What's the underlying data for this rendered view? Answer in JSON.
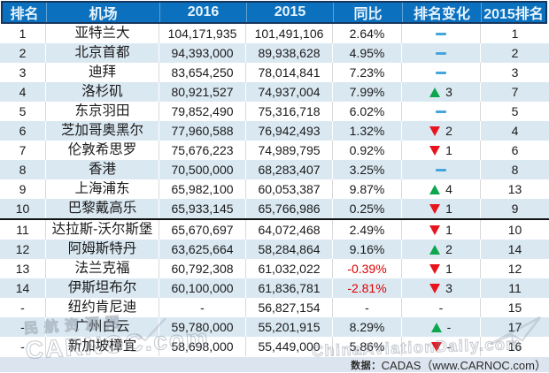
{
  "chart_data": {
    "type": "table",
    "title": "",
    "columns": [
      "排名",
      "机场",
      "2016",
      "2015",
      "同比",
      "排名变化",
      "2015排名"
    ],
    "rows": [
      [
        "1",
        "亚特兰大",
        "104,171,935",
        "101,491,106",
        "2.64%",
        "—",
        "1"
      ],
      [
        "2",
        "北京首都",
        "94,393,000",
        "89,938,628",
        "4.95%",
        "—",
        "2"
      ],
      [
        "3",
        "迪拜",
        "83,654,250",
        "78,014,841",
        "7.23%",
        "—",
        "3"
      ],
      [
        "4",
        "洛杉矶",
        "80,921,527",
        "74,937,004",
        "7.99%",
        "▲ 3",
        "7"
      ],
      [
        "5",
        "东京羽田",
        "79,852,490",
        "75,316,718",
        "6.02%",
        "—",
        "5"
      ],
      [
        "6",
        "芝加哥奥黑尔",
        "77,960,588",
        "76,942,493",
        "1.32%",
        "▼ 2",
        "4"
      ],
      [
        "7",
        "伦敦希思罗",
        "75,676,223",
        "74,989,795",
        "0.92%",
        "▼ 1",
        "6"
      ],
      [
        "8",
        "香港",
        "70,500,000",
        "68,283,407",
        "3.25%",
        "—",
        "8"
      ],
      [
        "9",
        "上海浦东",
        "65,982,100",
        "60,053,387",
        "9.87%",
        "▲ 4",
        "13"
      ],
      [
        "10",
        "巴黎戴高乐",
        "65,933,145",
        "65,766,986",
        "0.25%",
        "▼ 1",
        "9"
      ],
      [
        "11",
        "达拉斯-沃尔斯堡",
        "65,670,697",
        "64,072,468",
        "2.49%",
        "▼ 1",
        "10"
      ],
      [
        "12",
        "阿姆斯特丹",
        "63,625,664",
        "58,284,864",
        "9.16%",
        "▲ 2",
        "14"
      ],
      [
        "13",
        "法兰克福",
        "60,792,308",
        "61,032,022",
        "-0.39%",
        "▼ 1",
        "12"
      ],
      [
        "14",
        "伊斯坦布尔",
        "60,100,000",
        "61,836,781",
        "-2.81%",
        "▼ 3",
        "11"
      ],
      [
        "-",
        "纽约肯尼迪",
        "-",
        "56,827,154",
        "-",
        "-",
        "15"
      ],
      [
        "-",
        "广州白云",
        "59,780,000",
        "55,201,915",
        "8.29%",
        "▲ -",
        "17"
      ],
      [
        "-",
        "新加坡樟宜",
        "58,698,000",
        "55,449,000",
        "5.86%",
        "▼ -",
        "16"
      ]
    ],
    "notes": "排名1-10与11-17之间有粗分隔线；负同比为红色；来源：数据：CADAS（www.CARNOC.com）"
  },
  "table": {
    "columns": [
      "排名",
      "机场",
      "2016",
      "2015",
      "同比",
      "排名变化",
      "2015排名"
    ],
    "rows": [
      {
        "rank": "1",
        "airport": "亚特兰大",
        "y2016": "104,171,935",
        "y2015": "101,491,106",
        "yoy": "2.64%",
        "yoy_negative": false,
        "change_dir": "flat",
        "change_value": "",
        "rank2015": "1"
      },
      {
        "rank": "2",
        "airport": "北京首都",
        "y2016": "94,393,000",
        "y2015": "89,938,628",
        "yoy": "4.95%",
        "yoy_negative": false,
        "change_dir": "flat",
        "change_value": "",
        "rank2015": "2"
      },
      {
        "rank": "3",
        "airport": "迪拜",
        "y2016": "83,654,250",
        "y2015": "78,014,841",
        "yoy": "7.23%",
        "yoy_negative": false,
        "change_dir": "flat",
        "change_value": "",
        "rank2015": "3"
      },
      {
        "rank": "4",
        "airport": "洛杉矶",
        "y2016": "80,921,527",
        "y2015": "74,937,004",
        "yoy": "7.99%",
        "yoy_negative": false,
        "change_dir": "up",
        "change_value": "3",
        "rank2015": "7"
      },
      {
        "rank": "5",
        "airport": "东京羽田",
        "y2016": "79,852,490",
        "y2015": "75,316,718",
        "yoy": "6.02%",
        "yoy_negative": false,
        "change_dir": "flat",
        "change_value": "",
        "rank2015": "5"
      },
      {
        "rank": "6",
        "airport": "芝加哥奥黑尔",
        "y2016": "77,960,588",
        "y2015": "76,942,493",
        "yoy": "1.32%",
        "yoy_negative": false,
        "change_dir": "down",
        "change_value": "2",
        "rank2015": "4"
      },
      {
        "rank": "7",
        "airport": "伦敦希思罗",
        "y2016": "75,676,223",
        "y2015": "74,989,795",
        "yoy": "0.92%",
        "yoy_negative": false,
        "change_dir": "down",
        "change_value": "1",
        "rank2015": "6"
      },
      {
        "rank": "8",
        "airport": "香港",
        "y2016": "70,500,000",
        "y2015": "68,283,407",
        "yoy": "3.25%",
        "yoy_negative": false,
        "change_dir": "flat",
        "change_value": "",
        "rank2015": "8"
      },
      {
        "rank": "9",
        "airport": "上海浦东",
        "y2016": "65,982,100",
        "y2015": "60,053,387",
        "yoy": "9.87%",
        "yoy_negative": false,
        "change_dir": "up",
        "change_value": "4",
        "rank2015": "13"
      },
      {
        "rank": "10",
        "airport": "巴黎戴高乐",
        "y2016": "65,933,145",
        "y2015": "65,766,986",
        "yoy": "0.25%",
        "yoy_negative": false,
        "change_dir": "down",
        "change_value": "1",
        "rank2015": "9"
      },
      {
        "rank": "11",
        "airport": "达拉斯-沃尔斯堡",
        "y2016": "65,670,697",
        "y2015": "64,072,468",
        "yoy": "2.49%",
        "yoy_negative": false,
        "change_dir": "down",
        "change_value": "1",
        "rank2015": "10"
      },
      {
        "rank": "12",
        "airport": "阿姆斯特丹",
        "y2016": "63,625,664",
        "y2015": "58,284,864",
        "yoy": "9.16%",
        "yoy_negative": false,
        "change_dir": "up",
        "change_value": "2",
        "rank2015": "14"
      },
      {
        "rank": "13",
        "airport": "法兰克福",
        "y2016": "60,792,308",
        "y2015": "61,032,022",
        "yoy": "-0.39%",
        "yoy_negative": true,
        "change_dir": "down",
        "change_value": "1",
        "rank2015": "12"
      },
      {
        "rank": "14",
        "airport": "伊斯坦布尔",
        "y2016": "60,100,000",
        "y2015": "61,836,781",
        "yoy": "-2.81%",
        "yoy_negative": true,
        "change_dir": "down",
        "change_value": "3",
        "rank2015": "11"
      },
      {
        "rank": "-",
        "airport": "纽约肯尼迪",
        "y2016": "-",
        "y2015": "56,827,154",
        "yoy": "-",
        "yoy_negative": false,
        "change_dir": "none",
        "change_value": "-",
        "rank2015": "15"
      },
      {
        "rank": "-",
        "airport": "广州白云",
        "y2016": "59,780,000",
        "y2015": "55,201,915",
        "yoy": "8.29%",
        "yoy_negative": false,
        "change_dir": "up",
        "change_value": "-",
        "rank2015": "17"
      },
      {
        "rank": "-",
        "airport": "新加坡樟宜",
        "y2016": "58,698,000",
        "y2015": "55,449,000",
        "yoy": "5.86%",
        "yoy_negative": false,
        "change_dir": "down",
        "change_value": "-",
        "rank2015": "16"
      }
    ],
    "top_group_size": 10
  },
  "source": {
    "prefix": "数据：",
    "value": "CADAS（www.CARNOC.com）"
  },
  "watermarks": {
    "left_line1": "民航资源网",
    "left_line2": "CARNOC.com",
    "right_text": "ChinaAviationDaily.com"
  },
  "colors": {
    "header_bg": "#0B70BE",
    "header_border": "#17375E",
    "header_text": "#E8F4FC",
    "row_alt": "#DAE8F2",
    "grid_line": "#D9D9D9",
    "cell_text": "#1A1A1A",
    "neg_red": "#E00000",
    "up_green": "#0CA64F",
    "down_red": "#E8131C",
    "dash_blue": "#45A6DC",
    "divider": "#121212",
    "bar_bg": "#DCE4EF",
    "bar_text": "#2B2B2B"
  }
}
